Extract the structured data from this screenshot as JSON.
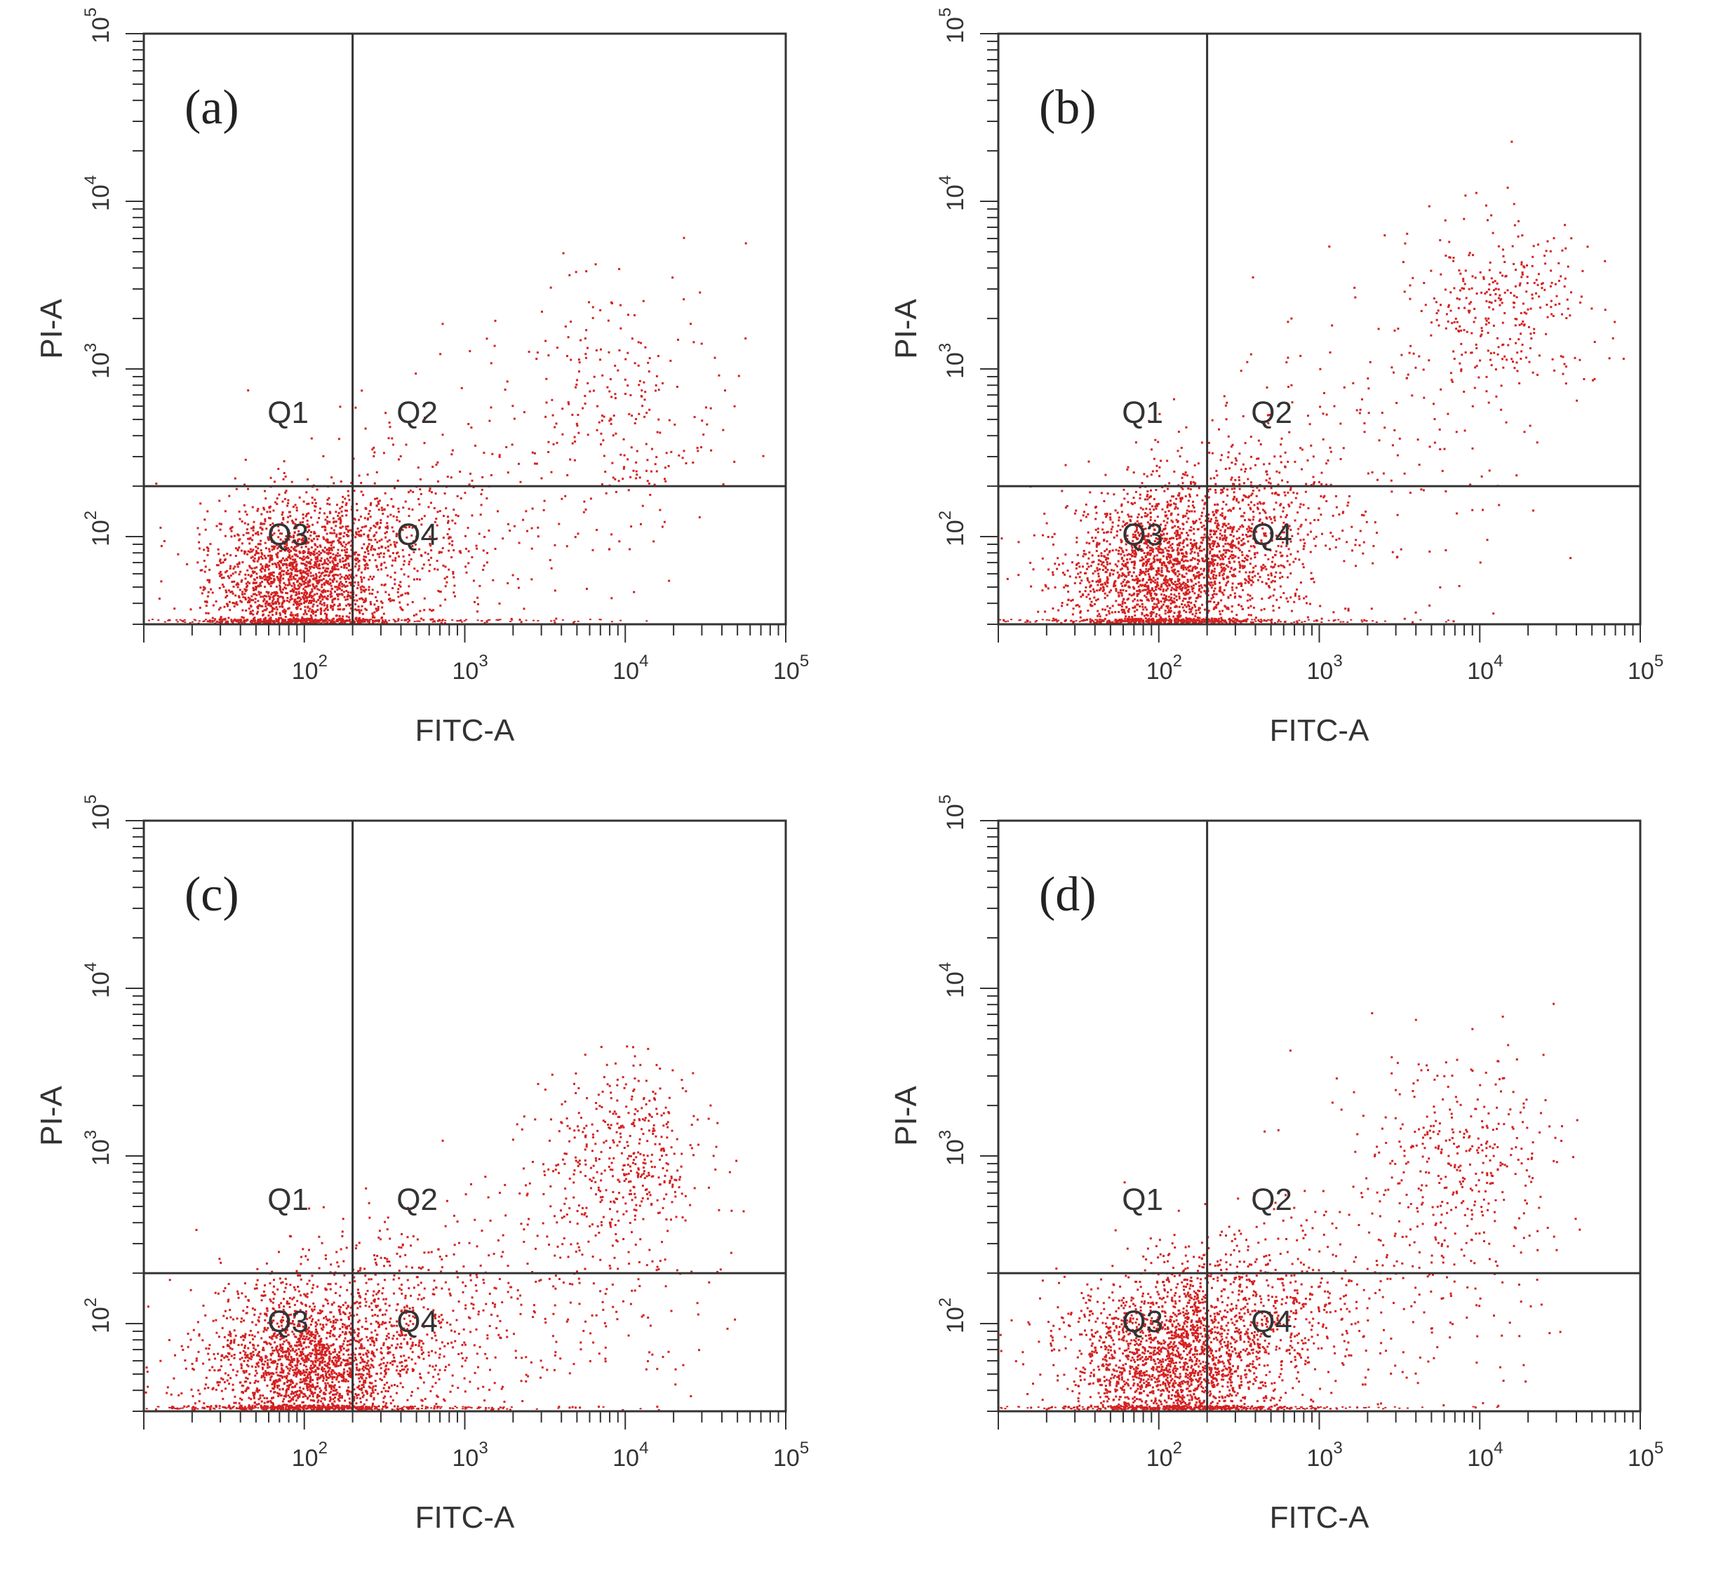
{
  "figure": {
    "description_colors": {
      "dots": "#d42020",
      "axes": "#333333",
      "background": "#ffffff"
    }
  },
  "chart_data": [
    {
      "type": "scatter",
      "panel_label": "(a)",
      "xlabel": "FITC-A",
      "ylabel": "PI-A",
      "x_scale": "log",
      "y_scale": "log",
      "xlim": [
        10,
        100000
      ],
      "ylim": [
        30,
        100000
      ],
      "x_ticks": [
        {
          "base": "10",
          "exp": "2",
          "value": 100
        },
        {
          "base": "10",
          "exp": "3",
          "value": 1000
        },
        {
          "base": "10",
          "exp": "4",
          "value": 10000
        },
        {
          "base": "10",
          "exp": "5",
          "value": 100000
        }
      ],
      "y_ticks": [
        {
          "base": "10",
          "exp": "2",
          "value": 100
        },
        {
          "base": "10",
          "exp": "3",
          "value": 1000
        },
        {
          "base": "10",
          "exp": "4",
          "value": 10000
        },
        {
          "base": "10",
          "exp": "5",
          "value": 100000
        }
      ],
      "gate": {
        "x": 200,
        "y": 200
      },
      "quadrants": [
        "Q1",
        "Q2",
        "Q3",
        "Q4"
      ],
      "clusters": [
        {
          "cx": 90,
          "cy": 55,
          "sx": 0.28,
          "sy": 0.22,
          "n": 1700
        },
        {
          "cx": 260,
          "cy": 90,
          "sx": 0.35,
          "sy": 0.25,
          "n": 550
        },
        {
          "cx": 9000,
          "cy": 600,
          "sx": 0.32,
          "sy": 0.4,
          "n": 260
        },
        {
          "cx": 1200,
          "cy": 180,
          "sx": 0.55,
          "sy": 0.45,
          "n": 130
        }
      ]
    },
    {
      "type": "scatter",
      "panel_label": "(b)",
      "xlabel": "FITC-A",
      "ylabel": "PI-A",
      "x_scale": "log",
      "y_scale": "log",
      "xlim": [
        10,
        100000
      ],
      "ylim": [
        30,
        100000
      ],
      "x_ticks": [
        {
          "base": "10",
          "exp": "2",
          "value": 100
        },
        {
          "base": "10",
          "exp": "3",
          "value": 1000
        },
        {
          "base": "10",
          "exp": "4",
          "value": 10000
        },
        {
          "base": "10",
          "exp": "5",
          "value": 100000
        }
      ],
      "y_ticks": [
        {
          "base": "10",
          "exp": "2",
          "value": 100
        },
        {
          "base": "10",
          "exp": "3",
          "value": 1000
        },
        {
          "base": "10",
          "exp": "4",
          "value": 10000
        },
        {
          "base": "10",
          "exp": "5",
          "value": 100000
        }
      ],
      "gate": {
        "x": 200,
        "y": 200
      },
      "quadrants": [
        "Q1",
        "Q2",
        "Q3",
        "Q4"
      ],
      "clusters": [
        {
          "cx": 100,
          "cy": 60,
          "sx": 0.3,
          "sy": 0.24,
          "n": 1700
        },
        {
          "cx": 280,
          "cy": 110,
          "sx": 0.35,
          "sy": 0.28,
          "n": 750
        },
        {
          "cx": 14000,
          "cy": 2300,
          "sx": 0.28,
          "sy": 0.25,
          "n": 330
        },
        {
          "cx": 2500,
          "cy": 400,
          "sx": 0.5,
          "sy": 0.5,
          "n": 180
        }
      ]
    },
    {
      "type": "scatter",
      "panel_label": "(c)",
      "xlabel": "FITC-A",
      "ylabel": "PI-A",
      "x_scale": "log",
      "y_scale": "log",
      "xlim": [
        10,
        100000
      ],
      "ylim": [
        30,
        100000
      ],
      "x_ticks": [
        {
          "base": "10",
          "exp": "2",
          "value": 100
        },
        {
          "base": "10",
          "exp": "3",
          "value": 1000
        },
        {
          "base": "10",
          "exp": "4",
          "value": 10000
        },
        {
          "base": "10",
          "exp": "5",
          "value": 100000
        }
      ],
      "y_ticks": [
        {
          "base": "10",
          "exp": "2",
          "value": 100
        },
        {
          "base": "10",
          "exp": "3",
          "value": 1000
        },
        {
          "base": "10",
          "exp": "4",
          "value": 10000
        },
        {
          "base": "10",
          "exp": "5",
          "value": 100000
        }
      ],
      "gate": {
        "x": 200,
        "y": 200
      },
      "quadrants": [
        "Q1",
        "Q2",
        "Q3",
        "Q4"
      ],
      "clusters": [
        {
          "cx": 100,
          "cy": 55,
          "sx": 0.3,
          "sy": 0.22,
          "n": 1700
        },
        {
          "cx": 300,
          "cy": 100,
          "sx": 0.4,
          "sy": 0.28,
          "n": 700
        },
        {
          "cx": 10000,
          "cy": 1100,
          "sx": 0.25,
          "sy": 0.25,
          "n": 420
        },
        {
          "cx": 5000,
          "cy": 180,
          "sx": 0.45,
          "sy": 0.45,
          "n": 250
        }
      ]
    },
    {
      "type": "scatter",
      "panel_label": "(d)",
      "xlabel": "FITC-A",
      "ylabel": "PI-A",
      "x_scale": "log",
      "y_scale": "log",
      "xlim": [
        10,
        100000
      ],
      "ylim": [
        30,
        100000
      ],
      "x_ticks": [
        {
          "base": "10",
          "exp": "2",
          "value": 100
        },
        {
          "base": "10",
          "exp": "3",
          "value": 1000
        },
        {
          "base": "10",
          "exp": "4",
          "value": 10000
        },
        {
          "base": "10",
          "exp": "5",
          "value": 100000
        }
      ],
      "y_ticks": [
        {
          "base": "10",
          "exp": "2",
          "value": 100
        },
        {
          "base": "10",
          "exp": "3",
          "value": 1000
        },
        {
          "base": "10",
          "exp": "4",
          "value": 10000
        },
        {
          "base": "10",
          "exp": "5",
          "value": 100000
        }
      ],
      "gate": {
        "x": 200,
        "y": 200
      },
      "quadrants": [
        "Q1",
        "Q2",
        "Q3",
        "Q4"
      ],
      "clusters": [
        {
          "cx": 110,
          "cy": 60,
          "sx": 0.32,
          "sy": 0.24,
          "n": 1700
        },
        {
          "cx": 320,
          "cy": 110,
          "sx": 0.4,
          "sy": 0.28,
          "n": 750
        },
        {
          "cx": 8000,
          "cy": 900,
          "sx": 0.3,
          "sy": 0.3,
          "n": 300
        },
        {
          "cx": 4000,
          "cy": 250,
          "sx": 0.45,
          "sy": 0.45,
          "n": 200
        }
      ]
    }
  ]
}
